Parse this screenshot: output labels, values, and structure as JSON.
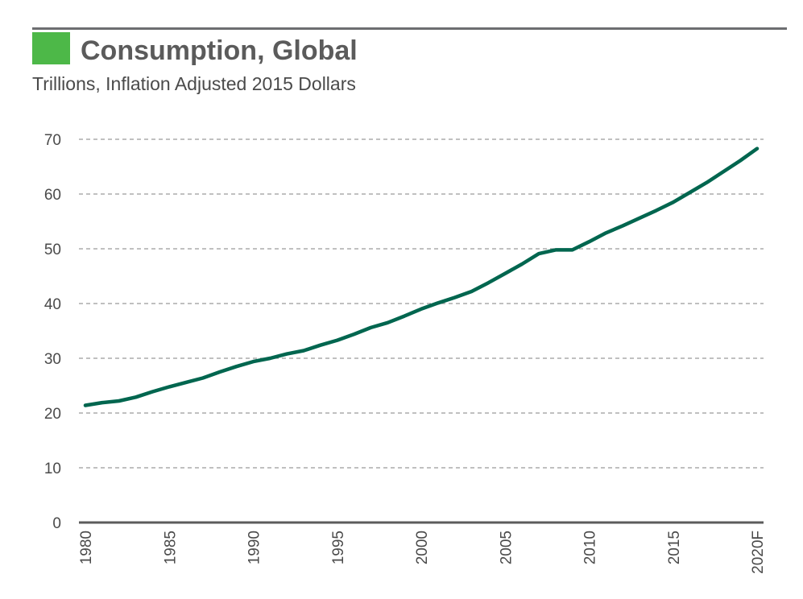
{
  "colors": {
    "accent": "#4db848",
    "line": "#00664f",
    "grid": "#9a9a9a",
    "axis": "#5b5b5b",
    "text": "#4a4a4a"
  },
  "chart_data": {
    "type": "line",
    "title": "Consumption, Global",
    "subtitle": "Trillions, Inflation Adjusted 2015 Dollars",
    "xlabel": "",
    "ylabel": "",
    "ylim": [
      0,
      70
    ],
    "xlim": [
      1980,
      2020
    ],
    "grid": true,
    "y_ticks": [
      0,
      10,
      20,
      30,
      40,
      50,
      60,
      70
    ],
    "x_ticks": [
      {
        "x": 1980,
        "label": "1980"
      },
      {
        "x": 1985,
        "label": "1985"
      },
      {
        "x": 1990,
        "label": "1990"
      },
      {
        "x": 1995,
        "label": "1995"
      },
      {
        "x": 2000,
        "label": "2000"
      },
      {
        "x": 2005,
        "label": "2005"
      },
      {
        "x": 2010,
        "label": "2010"
      },
      {
        "x": 2015,
        "label": "2015"
      },
      {
        "x": 2020,
        "label": "2020F"
      }
    ],
    "series": [
      {
        "name": "Consumption, Global",
        "x": [
          1980,
          1981,
          1982,
          1983,
          1984,
          1985,
          1986,
          1987,
          1988,
          1989,
          1990,
          1991,
          1992,
          1993,
          1994,
          1995,
          1996,
          1997,
          1998,
          1999,
          2000,
          2001,
          2002,
          2003,
          2004,
          2005,
          2006,
          2007,
          2008,
          2009,
          2010,
          2011,
          2012,
          2013,
          2014,
          2015,
          2016,
          2017,
          2018,
          2019,
          2020
        ],
        "values": [
          21.4,
          21.9,
          22.2,
          22.9,
          23.9,
          24.8,
          25.6,
          26.4,
          27.5,
          28.5,
          29.4,
          30.0,
          30.8,
          31.4,
          32.4,
          33.3,
          34.4,
          35.6,
          36.5,
          37.7,
          39.0,
          40.1,
          41.1,
          42.2,
          43.8,
          45.5,
          47.2,
          49.1,
          49.8,
          49.8,
          51.3,
          52.9,
          54.2,
          55.6,
          57.0,
          58.5,
          60.3,
          62.1,
          64.1,
          66.1,
          68.3
        ]
      }
    ]
  }
}
